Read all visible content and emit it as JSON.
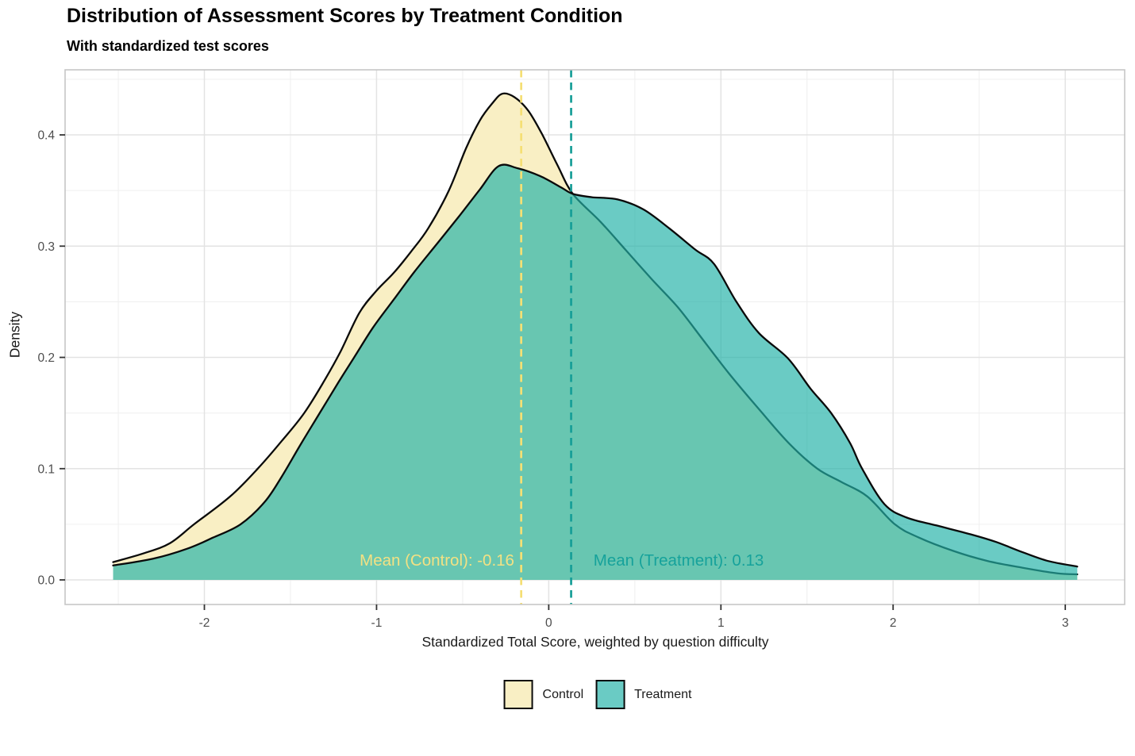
{
  "title": "Distribution of Assessment Scores by Treatment Condition",
  "subtitle": "With standardized test scores",
  "chart_data": {
    "type": "area",
    "subtype": "density",
    "title": "Distribution of Assessment Scores by Treatment Condition",
    "subtitle": "With standardized test scores",
    "xlabel": "Standardized Total Score, weighted by question difficulty",
    "ylabel": "Density",
    "xlim": [
      -2.809,
      3.345
    ],
    "ylim": [
      -0.0221,
      0.4585
    ],
    "grid": "on",
    "legend_position": "bottom",
    "x_ticks": {
      "values": [
        -2,
        -1,
        0,
        1,
        2,
        3
      ],
      "labels": [
        "-2",
        "-1",
        "0",
        "1",
        "2",
        "3"
      ]
    },
    "y_ticks": {
      "values": [
        0.0,
        0.1,
        0.2,
        0.3,
        0.4
      ],
      "labels": [
        "0.0",
        "0.1",
        "0.2",
        "0.3",
        "0.4"
      ]
    },
    "x_minor_ticks": [
      -2.5,
      -1.5,
      -0.5,
      0.5,
      1.5,
      2.5
    ],
    "y_minor_ticks": [
      0.05,
      0.15,
      0.25,
      0.35,
      0.45
    ],
    "series": [
      {
        "name": "Control",
        "fill": "#F9EFC4",
        "fill_opacity": 1,
        "stroke": "#0a0a0a",
        "mean": -0.16,
        "peak": {
          "x": -0.27,
          "density": 0.437
        },
        "points": [
          [
            -2.53,
            0.016
          ],
          [
            -2.35,
            0.024
          ],
          [
            -2.2,
            0.033
          ],
          [
            -2.06,
            0.05
          ],
          [
            -1.85,
            0.075
          ],
          [
            -1.69,
            0.1
          ],
          [
            -1.55,
            0.125
          ],
          [
            -1.42,
            0.15
          ],
          [
            -1.3,
            0.18
          ],
          [
            -1.21,
            0.205
          ],
          [
            -1.1,
            0.24
          ],
          [
            -1.0,
            0.26
          ],
          [
            -0.9,
            0.276
          ],
          [
            -0.8,
            0.295
          ],
          [
            -0.7,
            0.316
          ],
          [
            -0.58,
            0.35
          ],
          [
            -0.48,
            0.388
          ],
          [
            -0.4,
            0.413
          ],
          [
            -0.33,
            0.428
          ],
          [
            -0.27,
            0.437
          ],
          [
            -0.2,
            0.434
          ],
          [
            -0.12,
            0.422
          ],
          [
            -0.04,
            0.401
          ],
          [
            0.05,
            0.373
          ],
          [
            0.14,
            0.347
          ],
          [
            0.3,
            0.322
          ],
          [
            0.45,
            0.296
          ],
          [
            0.6,
            0.27
          ],
          [
            0.75,
            0.245
          ],
          [
            0.9,
            0.215
          ],
          [
            1.05,
            0.185
          ],
          [
            1.24,
            0.15
          ],
          [
            1.4,
            0.122
          ],
          [
            1.56,
            0.1
          ],
          [
            1.7,
            0.088
          ],
          [
            1.85,
            0.075
          ],
          [
            2.01,
            0.05
          ],
          [
            2.15,
            0.038
          ],
          [
            2.35,
            0.026
          ],
          [
            2.55,
            0.017
          ],
          [
            2.75,
            0.011
          ],
          [
            2.95,
            0.006
          ],
          [
            3.07,
            0.005
          ]
        ]
      },
      {
        "name": "Treatment",
        "fill": "#24B2A8",
        "fill_opacity": 0.68,
        "stroke": "#0a0a0a",
        "mean": 0.13,
        "peak": {
          "x": -0.29,
          "density": 0.372
        },
        "points": [
          [
            -2.53,
            0.013
          ],
          [
            -2.3,
            0.019
          ],
          [
            -2.1,
            0.028
          ],
          [
            -1.95,
            0.038
          ],
          [
            -1.79,
            0.05
          ],
          [
            -1.65,
            0.07
          ],
          [
            -1.55,
            0.093
          ],
          [
            -1.44,
            0.122
          ],
          [
            -1.33,
            0.15
          ],
          [
            -1.22,
            0.178
          ],
          [
            -1.13,
            0.2
          ],
          [
            -1.02,
            0.227
          ],
          [
            -0.9,
            0.252
          ],
          [
            -0.78,
            0.277
          ],
          [
            -0.65,
            0.302
          ],
          [
            -0.52,
            0.327
          ],
          [
            -0.4,
            0.351
          ],
          [
            -0.29,
            0.372
          ],
          [
            -0.18,
            0.37
          ],
          [
            -0.05,
            0.363
          ],
          [
            0.07,
            0.353
          ],
          [
            0.14,
            0.347
          ],
          [
            0.25,
            0.344
          ],
          [
            0.4,
            0.342
          ],
          [
            0.55,
            0.333
          ],
          [
            0.7,
            0.316
          ],
          [
            0.85,
            0.297
          ],
          [
            0.96,
            0.284
          ],
          [
            1.09,
            0.25
          ],
          [
            1.22,
            0.222
          ],
          [
            1.39,
            0.199
          ],
          [
            1.52,
            0.172
          ],
          [
            1.64,
            0.15
          ],
          [
            1.75,
            0.123
          ],
          [
            1.82,
            0.1
          ],
          [
            1.95,
            0.068
          ],
          [
            2.08,
            0.056
          ],
          [
            2.25,
            0.049
          ],
          [
            2.45,
            0.041
          ],
          [
            2.6,
            0.034
          ],
          [
            2.75,
            0.025
          ],
          [
            2.9,
            0.017
          ],
          [
            3.07,
            0.012
          ]
        ]
      }
    ],
    "vlines": [
      {
        "series": "Control",
        "x": -0.16,
        "color": "#F5DF74",
        "label": "Mean (Control): -0.16",
        "label_color": "#F3E183",
        "label_anchor": "end",
        "label_x": -0.2,
        "label_y": 0.0128
      },
      {
        "series": "Treatment",
        "x": 0.13,
        "color": "#169E97",
        "label": "Mean (Treatment): 0.13",
        "label_color": "#16A29B",
        "label_anchor": "start",
        "label_x": 0.26,
        "label_y": 0.0128
      }
    ]
  },
  "legend": {
    "items": [
      {
        "label": "Control",
        "fill": "#F9EFC4",
        "fill_opacity": 1
      },
      {
        "label": "Treatment",
        "fill": "#24B2A8",
        "fill_opacity": 0.68
      }
    ]
  },
  "colors": {
    "control_fill_composite": "#F9EFC4",
    "treatment_fill_composite_over_white": "#6ACBC4",
    "overlap_composite": "#6FC5AC",
    "control_accent": "#F5DF74",
    "treatment_accent": "#169E97",
    "curve_stroke": "#0a0a0a",
    "grid_major": "#E3E3E3",
    "grid_minor": "#F0F0F0",
    "panel_border": "#C6C6C6",
    "tick_mark": "#333333",
    "tick_label": "#4d4d4d"
  }
}
